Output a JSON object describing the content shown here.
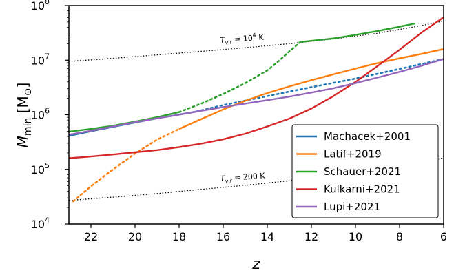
{
  "chart_data": {
    "type": "line",
    "xlabel": "z",
    "ylabel": "M_min [M_⊙]",
    "xlim": [
      23,
      6
    ],
    "ylim": [
      10000,
      100000000
    ],
    "yscale": "log",
    "x_ticks": [
      22,
      20,
      18,
      16,
      14,
      12,
      10,
      8,
      6
    ],
    "y_ticks": [
      {
        "value": 10000,
        "base": "10",
        "exp": "4"
      },
      {
        "value": 100000,
        "base": "10",
        "exp": "5"
      },
      {
        "value": 1000000,
        "base": "10",
        "exp": "6"
      },
      {
        "value": 10000000,
        "base": "10",
        "exp": "7"
      },
      {
        "value": 100000000,
        "base": "10",
        "exp": "8"
      }
    ],
    "legend_position": "lower-right",
    "annotations": [
      {
        "id": "tvir1e4",
        "label": "T_vir = 10^4 K",
        "sub": "vir",
        "eq": " = 10",
        "sup": "4",
        "unit": " K"
      },
      {
        "id": "tvir200",
        "label": "T_vir = 200 K",
        "sub": "vir",
        "eq": " = 200 K"
      }
    ],
    "reference_lines": [
      {
        "id": "tvir1e4",
        "style": "dotted",
        "color": "#000000",
        "x": [
          23,
          21,
          19,
          17,
          15,
          13,
          11,
          9,
          7,
          6
        ],
        "y": [
          9500000.0,
          10800000.0,
          12500000.0,
          14500000.0,
          16900000.0,
          20000000.0,
          24500000.0,
          31000000.0,
          43000000.0,
          52000000.0
        ]
      },
      {
        "id": "tvir200",
        "style": "dotted",
        "color": "#000000",
        "x": [
          23,
          21,
          19,
          17,
          15,
          13,
          11,
          9,
          7,
          6
        ],
        "y": [
          27000.0,
          31000.0,
          36000.0,
          43000.0,
          51000.0,
          62000.0,
          77000.0,
          98000.0,
          134000.0,
          162000.0
        ]
      }
    ],
    "series": [
      {
        "name": "Machacek+2001",
        "color": "#1f77b4",
        "solid": {
          "x": [
            23,
            22,
            21,
            20,
            19,
            18,
            17.2
          ],
          "y": [
            410000.0,
            500000.0,
            600000.0,
            720000.0,
            860000.0,
            1010000.0,
            1150000.0
          ]
        },
        "dotted": {
          "x": [
            17.2,
            16,
            14,
            12,
            10,
            8,
            6
          ],
          "y": [
            1150000.0,
            1500000.0,
            2200000.0,
            3200000.0,
            4600000.0,
            6900000.0,
            10500000.0
          ]
        }
      },
      {
        "name": "Latif+2019",
        "color": "#ff7f0e",
        "dotted": {
          "x": [
            22.8,
            22,
            21,
            20,
            19,
            18
          ],
          "y": [
            26000.0,
            49000.0,
            100000.0,
            195000.0,
            350000.0,
            550000.0
          ]
        },
        "solid": {
          "x": [
            18,
            17,
            16,
            15,
            14,
            13,
            12,
            11,
            10,
            9,
            8,
            7,
            6
          ],
          "y": [
            550000.0,
            830000.0,
            1250000.0,
            1800000.0,
            2500000.0,
            3300000.0,
            4300000.0,
            5500000.0,
            7000000.0,
            8800000.0,
            10800000.0,
            13000000.0,
            16000000.0
          ]
        }
      },
      {
        "name": "Schauer+2021",
        "color": "#2ca02c",
        "solid": {
          "x": [
            23,
            22,
            21,
            20,
            19,
            18
          ],
          "y": [
            490000.0,
            550000.0,
            630000.0,
            750000.0,
            900000.0,
            1120000.0
          ]
        },
        "dotted": {
          "x": [
            18,
            17,
            16,
            15,
            14,
            13.5,
            13,
            12.5
          ],
          "y": [
            1120000.0,
            1600000.0,
            2400000.0,
            3800000.0,
            6500000.0,
            9500000.0,
            14500000.0,
            21500000.0
          ]
        },
        "solid2": {
          "x": [
            12.5,
            11,
            10,
            9,
            8,
            7.3
          ],
          "y": [
            21500000.0,
            25000000.0,
            29000000.0,
            34000000.0,
            41000000.0,
            47000000.0
          ]
        }
      },
      {
        "name": "Kulkarni+2021",
        "color": "#d62728",
        "solid": {
          "x": [
            23,
            22,
            21,
            20,
            19,
            18,
            17,
            16,
            15,
            14,
            13,
            12,
            11,
            10,
            9,
            8,
            7,
            6
          ],
          "y": [
            160000.0,
            172000.0,
            187000.0,
            205000.0,
            225000.0,
            255000.0,
            295000.0,
            355000.0,
            450000.0,
            610000.0,
            850000.0,
            1300000.0,
            2200000.0,
            4000000.0,
            7800000.0,
            15500000.0,
            32000000.0,
            61000000.0
          ]
        }
      },
      {
        "name": "Lupi+2021",
        "color": "#9467bd",
        "solid": {
          "x": [
            23,
            22,
            21,
            20,
            19,
            18,
            17,
            16,
            15,
            14,
            13,
            12,
            11,
            10,
            9,
            8,
            7,
            6
          ],
          "y": [
            430000.0,
            510000.0,
            610000.0,
            730000.0,
            860000.0,
            1000000.0,
            1180000.0,
            1380000.0,
            1600000.0,
            1850000.0,
            2150000.0,
            2550000.0,
            3050000.0,
            3800000.0,
            4800000.0,
            6100000.0,
            7900000.0,
            10500000.0
          ]
        }
      }
    ]
  }
}
